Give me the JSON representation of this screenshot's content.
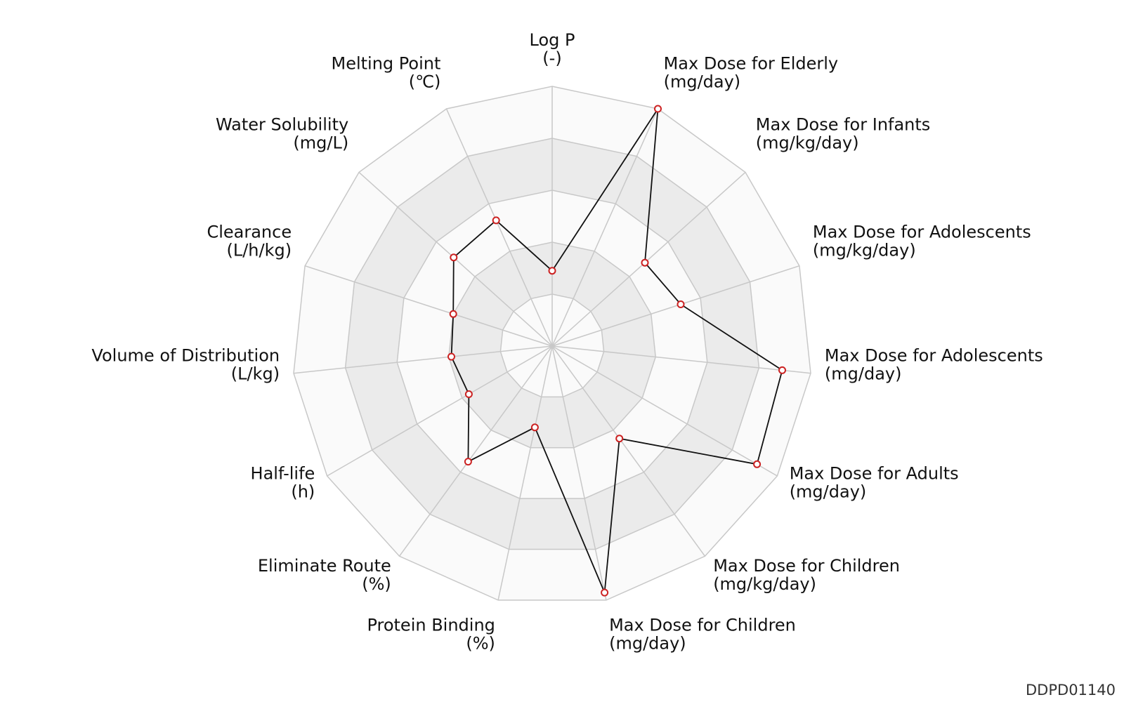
{
  "chart_data": {
    "type": "radar",
    "axes": [
      {
        "name": "Log P",
        "unit": "(-)"
      },
      {
        "name": "Max Dose for Elderly",
        "unit": "(mg/day)"
      },
      {
        "name": "Max Dose for Infants",
        "unit": "(mg/kg/day)"
      },
      {
        "name": "Max Dose for Adolescents",
        "unit": "(mg/kg/day)"
      },
      {
        "name": "Max Dose for Adolescents",
        "unit": "(mg/day)"
      },
      {
        "name": "Max Dose for Adults",
        "unit": "(mg/day)"
      },
      {
        "name": "Max Dose for Children",
        "unit": "(mg/kg/day)"
      },
      {
        "name": "Max Dose for Children",
        "unit": "(mg/day)"
      },
      {
        "name": "Protein Binding",
        "unit": "(%)"
      },
      {
        "name": "Eliminate Route",
        "unit": "(%)"
      },
      {
        "name": "Half-life",
        "unit": "(h)"
      },
      {
        "name": "Volume of Distribution",
        "unit": "(L/kg)"
      },
      {
        "name": "Clearance",
        "unit": "(L/h/kg)"
      },
      {
        "name": "Water Solubility",
        "unit": "(mg/L)"
      },
      {
        "name": "Melting Point",
        "unit": "(℃)"
      }
    ],
    "values": [
      0.29,
      1.0,
      0.48,
      0.52,
      0.89,
      0.91,
      0.44,
      0.97,
      0.32,
      0.55,
      0.37,
      0.39,
      0.4,
      0.51,
      0.53
    ],
    "range": [
      0,
      1
    ],
    "ring_levels": 5,
    "grid": true,
    "line_color": "#111111",
    "marker_color": "#cc2222",
    "band_colors": [
      "#ebebeb",
      "#fafafa"
    ],
    "grid_color": "#c8c8c8"
  },
  "watermark": "DDPD01140"
}
